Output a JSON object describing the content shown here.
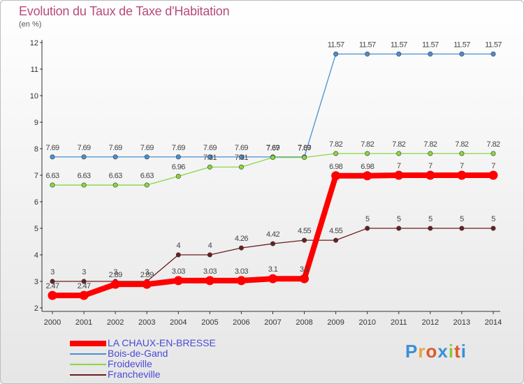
{
  "title": "Evolution du Taux de Taxe d'Habitation",
  "unit": "(en %)",
  "logo": "Proxiti",
  "chart_data": {
    "type": "line",
    "title": "Evolution du Taux de Taxe d'Habitation",
    "ylabel": "(en %)",
    "xlabel": "",
    "x": [
      2000,
      2001,
      2002,
      2003,
      2004,
      2005,
      2006,
      2007,
      2008,
      2009,
      2010,
      2011,
      2012,
      2013,
      2014
    ],
    "ylim": [
      2,
      12
    ],
    "yticks": [
      2,
      3,
      4,
      5,
      6,
      7,
      8,
      9,
      10,
      11,
      12
    ],
    "grid": false,
    "legend_position": "bottom",
    "series": [
      {
        "name": "LA CHAUX-EN-BRESSE",
        "color": "#ff0000",
        "values": [
          2.47,
          2.47,
          2.89,
          2.89,
          3.03,
          3.03,
          3.03,
          3.1,
          3.1,
          6.98,
          6.98,
          7,
          7,
          7,
          7
        ],
        "labels": [
          "2.47",
          "2.47",
          "2.89",
          "2.89",
          "3.03",
          "3.03",
          "3.03",
          "3.1",
          "3.1",
          "6.98",
          "6.98",
          "7",
          "7",
          "7",
          "7"
        ]
      },
      {
        "name": "Bois-de-Gand",
        "color": "#4a8fd0",
        "values": [
          7.69,
          7.69,
          7.69,
          7.69,
          7.69,
          7.69,
          7.69,
          7.69,
          7.69,
          11.57,
          11.57,
          11.57,
          11.57,
          11.57,
          11.57
        ],
        "labels": [
          "7.69",
          "7.69",
          "7.69",
          "7.69",
          "7.69",
          "7.69",
          "7.69",
          "7.69",
          "7.69",
          "11.57",
          "11.57",
          "11.57",
          "11.57",
          "11.57",
          "11.57"
        ]
      },
      {
        "name": "Froideville",
        "color": "#8ad640",
        "values": [
          6.63,
          6.63,
          6.63,
          6.63,
          6.96,
          7.31,
          7.31,
          7.67,
          7.67,
          7.82,
          7.82,
          7.82,
          7.82,
          7.82,
          7.82
        ],
        "labels": [
          "6.63",
          "6.63",
          "6.63",
          "6.63",
          "6.96",
          "7.31",
          "7.31",
          "7.67",
          "7.67",
          "7.82",
          "7.82",
          "7.82",
          "7.82",
          "7.82",
          "7.82"
        ]
      },
      {
        "name": "Francheville",
        "color": "#6b1e1e",
        "values": [
          3,
          3,
          3,
          3,
          4,
          4,
          4.26,
          4.42,
          4.55,
          4.55,
          5,
          5,
          5,
          5,
          5
        ],
        "labels": [
          "3",
          "3",
          "3",
          "3",
          "4",
          "4",
          "4.26",
          "4.42",
          "4.55",
          "4.55",
          "5",
          "5",
          "5",
          "5",
          "5"
        ]
      }
    ]
  }
}
